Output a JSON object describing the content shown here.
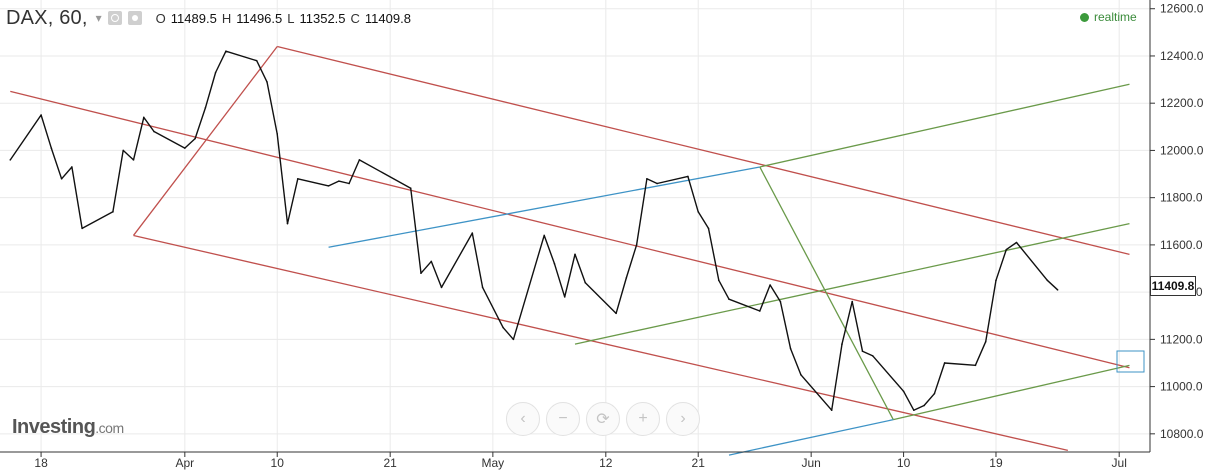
{
  "header": {
    "symbol": "DAX, 60,",
    "open_label": "O",
    "open": "11489.5",
    "high_label": "H",
    "high": "11496.5",
    "low_label": "L",
    "low": "11352.5",
    "close_label": "C",
    "close": "11409.8"
  },
  "status": {
    "realtime_label": "realtime"
  },
  "current_price_label": "11409.8",
  "branding": {
    "logo_text": "Investing",
    "logo_suffix": ".com"
  },
  "zoom_controls": [
    {
      "name": "scroll-left-button",
      "icon": "chevron-left-icon",
      "glyph": "‹"
    },
    {
      "name": "zoom-out-button",
      "icon": "minus-icon",
      "glyph": "−"
    },
    {
      "name": "reset-button",
      "icon": "refresh-icon",
      "glyph": "⟳"
    },
    {
      "name": "zoom-in-button",
      "icon": "plus-icon",
      "glyph": "+"
    },
    {
      "name": "scroll-right-button",
      "icon": "chevron-right-icon",
      "glyph": "›"
    }
  ],
  "colors": {
    "price_line": "#111111",
    "red_channel": "#c0504d",
    "green_fork": "#6a9a4a",
    "blue_line": "#3e93c6",
    "grid": "#eaeaea"
  },
  "chart_data": {
    "type": "line",
    "xlabel": "",
    "ylabel": "",
    "grid": true,
    "ylim": [
      10740,
      12620
    ],
    "x_tick_labels": [
      "18",
      "Apr",
      "10",
      "21",
      "May",
      "12",
      "21",
      "Jun",
      "10",
      "19",
      "Jul"
    ],
    "y_tick_labels": [
      "12600.0",
      "12400.0",
      "12200.0",
      "12000.0",
      "11800.0",
      "11600.0",
      "11400.0",
      "11200.0",
      "11000.0",
      "10800.0"
    ],
    "y_ticks": [
      12600,
      12400,
      12200,
      12000,
      11800,
      11600,
      11400,
      11200,
      11000,
      10800
    ],
    "series": [
      {
        "x": [
          "2019-03-15",
          "2019-03-18",
          "2019-03-19",
          "2019-03-20",
          "2019-03-21",
          "2019-03-22",
          "2019-03-25",
          "2019-03-26",
          "2019-03-27",
          "2019-03-28",
          "2019-03-29",
          "2019-04-01",
          "2019-04-02",
          "2019-04-03",
          "2019-04-04",
          "2019-04-05",
          "2019-04-08",
          "2019-04-09",
          "2019-04-10",
          "2019-04-11",
          "2019-04-12",
          "2019-04-15",
          "2019-04-16",
          "2019-04-17",
          "2019-04-18",
          "2019-04-23",
          "2019-04-24",
          "2019-04-25",
          "2019-04-26",
          "2019-04-29",
          "2019-04-30",
          "2019-05-02",
          "2019-05-03",
          "2019-05-06",
          "2019-05-07",
          "2019-05-08",
          "2019-05-09",
          "2019-05-10",
          "2019-05-13",
          "2019-05-14",
          "2019-05-15",
          "2019-05-16",
          "2019-05-17",
          "2019-05-20",
          "2019-05-21",
          "2019-05-22",
          "2019-05-23",
          "2019-05-24",
          "2019-05-27",
          "2019-05-28",
          "2019-05-29",
          "2019-05-30",
          "2019-05-31",
          "2019-06-03",
          "2019-06-04",
          "2019-06-05",
          "2019-06-06",
          "2019-06-07",
          "2019-06-10",
          "2019-06-11",
          "2019-06-12",
          "2019-06-13",
          "2019-06-14",
          "2019-06-17",
          "2019-06-18",
          "2019-06-19",
          "2019-06-20",
          "2019-06-21",
          "2019-06-24",
          "2019-06-25"
        ],
        "values": [
          11960,
          12150,
          12010,
          11880,
          11930,
          11670,
          11740,
          12000,
          11960,
          12140,
          12080,
          12010,
          12050,
          12180,
          12330,
          12420,
          12380,
          12290,
          12070,
          11690,
          11880,
          11850,
          11870,
          11860,
          11960,
          11840,
          11480,
          11530,
          11420,
          11650,
          11420,
          11250,
          11200,
          11640,
          11520,
          11380,
          11560,
          11440,
          11310,
          11460,
          11600,
          11880,
          11860,
          11890,
          11740,
          11670,
          11450,
          11370,
          11320,
          11430,
          11360,
          11160,
          11050,
          10900,
          11180,
          11360,
          11150,
          11130,
          10980,
          10900,
          10920,
          10970,
          11100,
          11090,
          11190,
          11450,
          11580,
          11610,
          11450,
          11409.8
        ]
      }
    ],
    "overlays": [
      {
        "kind": "red-channel-upper",
        "from": [
          "2019-04-10",
          12440
        ],
        "to": [
          "2019-07-02",
          11560
        ]
      },
      {
        "kind": "red-channel-middle",
        "from": [
          "2019-03-15",
          12250
        ],
        "to": [
          "2019-07-02",
          11080
        ]
      },
      {
        "kind": "red-channel-lower",
        "from": [
          "2019-03-27",
          11640
        ],
        "to": [
          "2019-06-26",
          10730
        ]
      },
      {
        "kind": "red-anchor",
        "from": [
          "2019-03-27",
          11640
        ],
        "to": [
          "2019-04-10",
          12440
        ]
      },
      {
        "kind": "green-fork-upper",
        "from": [
          "2019-05-27",
          11930
        ],
        "to": [
          "2019-07-02",
          12280
        ]
      },
      {
        "kind": "green-fork-median",
        "from": [
          "2019-05-09",
          11180
        ],
        "to": [
          "2019-07-02",
          11690
        ]
      },
      {
        "kind": "green-fork-lower",
        "from": [
          "2019-06-09",
          10860
        ],
        "to": [
          "2019-07-02",
          11090
        ]
      },
      {
        "kind": "green-handle",
        "from": [
          "2019-05-27",
          11930
        ],
        "to": [
          "2019-06-09",
          10860
        ]
      },
      {
        "kind": "blue-line",
        "from": [
          "2019-04-15",
          11590
        ],
        "to": [
          "2019-05-27",
          11930
        ]
      },
      {
        "kind": "blue-line-lower",
        "from": [
          "2019-05-24",
          10710
        ],
        "to": [
          "2019-06-09",
          10860
        ]
      }
    ]
  }
}
